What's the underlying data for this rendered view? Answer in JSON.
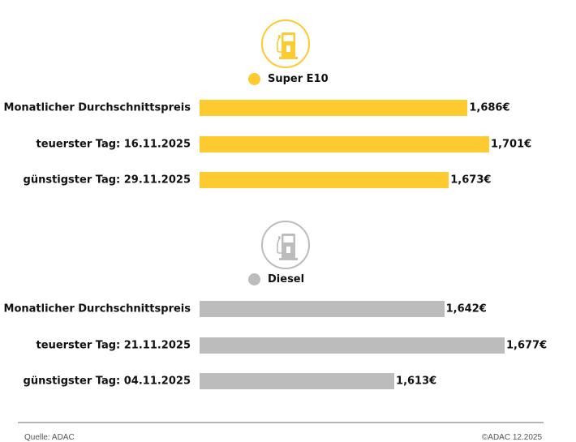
{
  "chart_data": [
    {
      "type": "bar",
      "orientation": "horizontal",
      "series_name": "Super E10",
      "color": "#fdca2f",
      "icon": "fuel-pump-icon",
      "categories": [
        "Monatlicher Durchschnittspreis",
        "teuerster Tag: 16.11.2025",
        "günstigster Tag: 29.11.2025"
      ],
      "values": [
        1.686,
        1.701,
        1.673
      ],
      "value_labels": [
        "1,686€",
        "1,701€",
        "1,673€"
      ],
      "xlim": [
        1.5,
        1.701
      ]
    },
    {
      "type": "bar",
      "orientation": "horizontal",
      "series_name": "Diesel",
      "color": "#bcbcbc",
      "icon": "fuel-pump-icon",
      "categories": [
        "Monatlicher Durchschnittspreis",
        "teuerster Tag: 21.11.2025",
        "günstigster Tag: 04.11.2025"
      ],
      "values": [
        1.642,
        1.677,
        1.613
      ],
      "value_labels": [
        "1,642€",
        "1,677€",
        "1,613€"
      ],
      "xlim": [
        1.5,
        1.677
      ]
    }
  ],
  "footer": {
    "source": "Quelle: ADAC",
    "copyright": "©ADAC 12.2025"
  }
}
